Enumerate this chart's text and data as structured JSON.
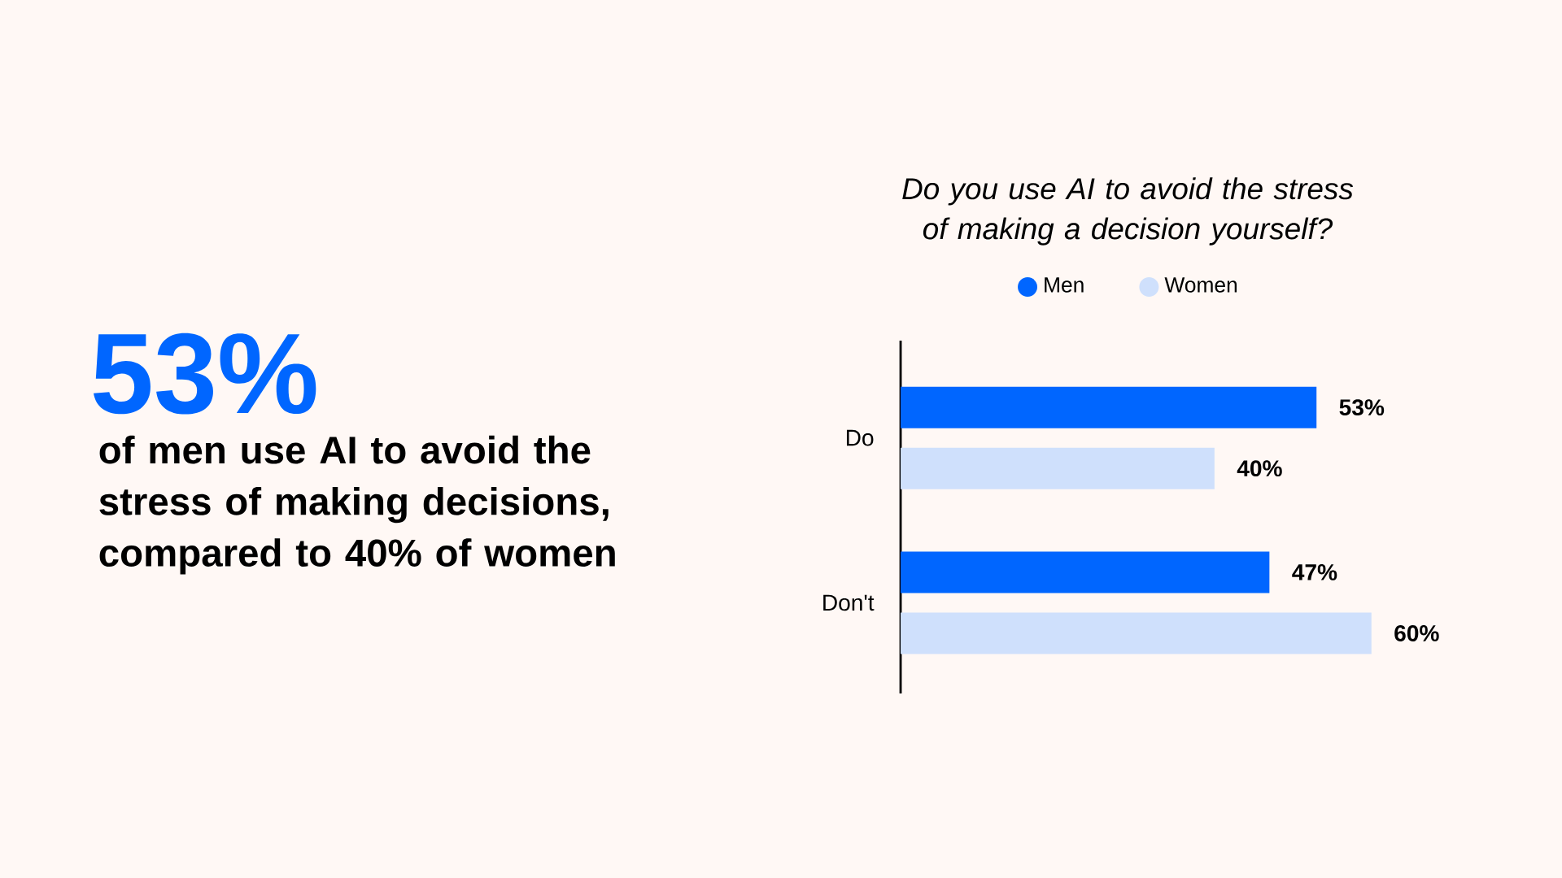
{
  "chart_data": {
    "type": "bar",
    "orientation": "horizontal",
    "title": "Do you use AI to avoid the stress of making a decision yourself?",
    "categories": [
      "Do",
      "Don't"
    ],
    "series": [
      {
        "name": "Men",
        "color": "#0066ff",
        "values": [
          53,
          47
        ],
        "value_labels": [
          "53%",
          "47%"
        ]
      },
      {
        "name": "Women",
        "color": "#cfe0fc",
        "values": [
          40,
          60
        ],
        "value_labels": [
          "40%",
          "60%"
        ]
      }
    ],
    "legend": "top",
    "annotations": [
      "53%",
      "of men use AI to avoid the stress of making decisions, compared to 40% of women"
    ]
  }
}
